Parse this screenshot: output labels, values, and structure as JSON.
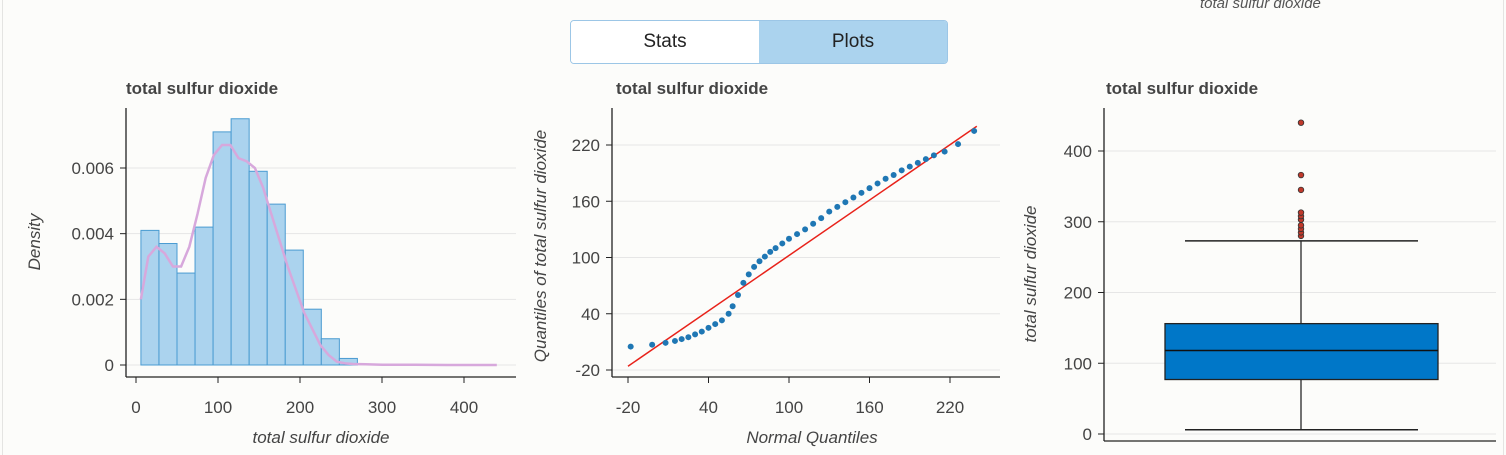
{
  "header": {
    "top_caption": "total sulfur dioxide",
    "tabs": [
      {
        "label": "Stats",
        "active": false
      },
      {
        "label": "Plots",
        "active": true
      }
    ]
  },
  "colors": {
    "hist_fill": "#abd3ee",
    "hist_edge": "#4a9bd1",
    "kde_line": "#d7a8dc",
    "qq_points": "#1f77b4",
    "qq_line": "#e8221a",
    "box_fill": "#0077c8",
    "outlier": "#c0392b"
  },
  "chart_data": [
    {
      "type": "bar",
      "subtype": "histogram",
      "title": "total sulfur dioxide",
      "xlabel": "total sulfur dioxide",
      "ylabel": "Density",
      "xlim": [
        0,
        440
      ],
      "ylim": [
        0,
        0.0077
      ],
      "xticks": [
        "0",
        "100",
        "200",
        "300",
        "400"
      ],
      "xtick_values": [
        0,
        100,
        200,
        300,
        400
      ],
      "yticks": [
        "0",
        "0.002",
        "0.004",
        "0.006"
      ],
      "ytick_values": [
        0,
        0.002,
        0.004,
        0.006
      ],
      "bin_edges": [
        6,
        28,
        50,
        72,
        94,
        116,
        138,
        160,
        182,
        204,
        226,
        248,
        270
      ],
      "values": [
        0.0041,
        0.0037,
        0.0028,
        0.0042,
        0.0071,
        0.0075,
        0.0059,
        0.0049,
        0.0035,
        0.0017,
        0.0008,
        0.0002
      ],
      "kde": {
        "x": [
          6,
          15,
          25,
          35,
          45,
          55,
          65,
          75,
          85,
          95,
          105,
          115,
          125,
          135,
          145,
          155,
          165,
          175,
          185,
          195,
          205,
          215,
          225,
          235,
          245,
          255,
          265,
          280,
          300,
          340,
          380,
          440
        ],
        "y": [
          0.002,
          0.0033,
          0.0036,
          0.0034,
          0.003,
          0.003,
          0.0036,
          0.0046,
          0.0057,
          0.0064,
          0.0067,
          0.0067,
          0.0063,
          0.0062,
          0.006,
          0.0054,
          0.0046,
          0.0038,
          0.003,
          0.0023,
          0.0016,
          0.0011,
          0.0006,
          0.0003,
          0.0001,
          5e-05,
          3e-05,
          2e-05,
          1e-05,
          1e-05,
          0.0,
          0.0
        ]
      },
      "grid": true
    },
    {
      "type": "scatter",
      "subtype": "qq-plot",
      "title": "total sulfur dioxide",
      "xlabel": "Normal Quantiles",
      "ylabel": "Quantiles of total sulfur dioxide",
      "xlim": [
        -20,
        245
      ],
      "ylim": [
        -22,
        250
      ],
      "xticks": [
        "-20",
        "40",
        "100",
        "160",
        "220"
      ],
      "xtick_values": [
        -20,
        40,
        100,
        160,
        220
      ],
      "yticks": [
        "-20",
        "40",
        "100",
        "160",
        "220"
      ],
      "ytick_values": [
        -20,
        40,
        100,
        160,
        220
      ],
      "points": {
        "x": [
          -18,
          -2,
          8,
          15,
          20,
          25,
          30,
          35,
          40,
          45,
          50,
          55,
          58,
          62,
          66,
          70,
          74,
          78,
          82,
          86,
          90,
          95,
          100,
          106,
          112,
          118,
          124,
          130,
          136,
          142,
          148,
          154,
          160,
          166,
          172,
          178,
          184,
          190,
          196,
          202,
          208,
          216,
          226,
          238
        ],
        "y": [
          5,
          7,
          9,
          11,
          13,
          15,
          18,
          21,
          25,
          29,
          33,
          40,
          48,
          60,
          73,
          82,
          90,
          96,
          101,
          106,
          110,
          115,
          120,
          125,
          130,
          136,
          142,
          149,
          154,
          159,
          164,
          169,
          174,
          179,
          184,
          188,
          193,
          197,
          201,
          205,
          209,
          213,
          221,
          235
        ]
      },
      "ref_line": {
        "x": [
          -20,
          240
        ],
        "y": [
          -16,
          240
        ]
      },
      "grid": true
    },
    {
      "type": "box",
      "title": "total sulfur dioxide",
      "xlabel": "",
      "ylabel": "total sulfur dioxide",
      "ylim": [
        -10,
        460
      ],
      "yticks": [
        "0",
        "100",
        "200",
        "300",
        "400"
      ],
      "ytick_values": [
        0,
        100,
        200,
        300,
        400
      ],
      "whisker_low": 6,
      "q1": 77,
      "median": 118,
      "q3": 156,
      "whisker_high": 273,
      "outliers": [
        280,
        285,
        290,
        295,
        303,
        308,
        313,
        345,
        366,
        440
      ],
      "grid": true
    }
  ]
}
